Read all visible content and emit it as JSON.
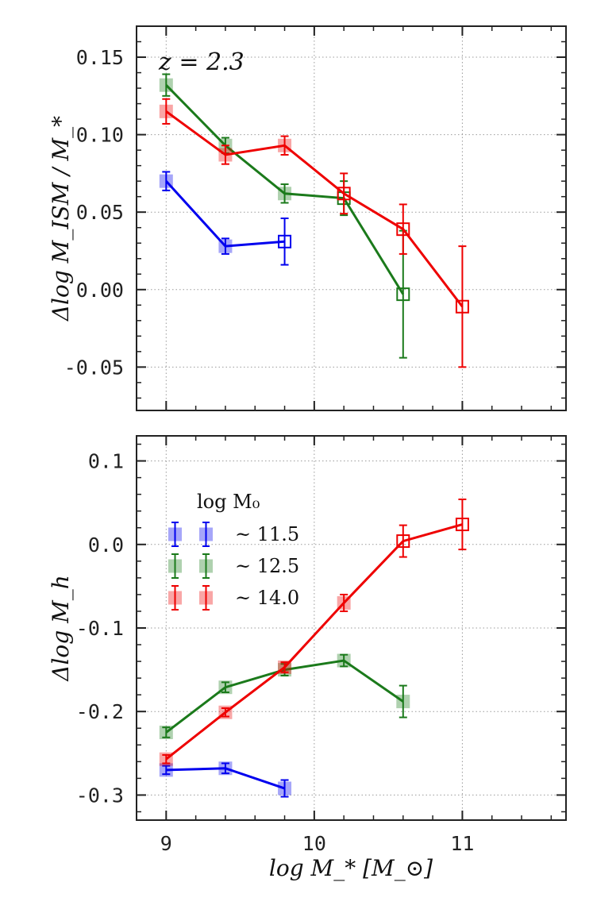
{
  "chart_data": [
    {
      "type": "line",
      "panel": "top",
      "title": "",
      "annotation": "z = 2.3",
      "xlabel": "",
      "ylabel": "Δlog M_ISM / M_*",
      "xlim": [
        8.8,
        11.7
      ],
      "ylim": [
        -0.078,
        0.17
      ],
      "xticks": [
        9,
        10,
        11
      ],
      "yticks": [
        0.15,
        0.1,
        0.05,
        0.0,
        -0.05
      ],
      "ytick_labels": [
        "0.15",
        "0.10",
        "0.05",
        "0.00",
        "-0.05"
      ],
      "grid": true,
      "series": [
        {
          "name": "~11.5",
          "color": "#0000ee",
          "x": [
            9.0,
            9.4,
            9.8
          ],
          "y": [
            0.07,
            0.028,
            0.031
          ],
          "err": [
            0.006,
            0.005,
            0.015
          ],
          "open": [
            false,
            false,
            true
          ]
        },
        {
          "name": "~12.5",
          "color": "#1b7a1b",
          "x": [
            9.0,
            9.4,
            9.8,
            10.2,
            10.6
          ],
          "y": [
            0.132,
            0.093,
            0.062,
            0.059,
            -0.003
          ],
          "err": [
            0.007,
            0.005,
            0.006,
            0.011,
            0.041
          ],
          "open": [
            false,
            false,
            false,
            true,
            true
          ]
        },
        {
          "name": "~14.0",
          "color": "#ee0000",
          "x": [
            9.0,
            9.4,
            9.8,
            10.2,
            10.6,
            11.0
          ],
          "y": [
            0.115,
            0.087,
            0.093,
            0.062,
            0.039,
            -0.011
          ],
          "err": [
            0.008,
            0.006,
            0.006,
            0.013,
            0.016,
            0.039
          ],
          "open": [
            false,
            false,
            false,
            true,
            true,
            true
          ]
        }
      ]
    },
    {
      "type": "line",
      "panel": "bottom",
      "title": "",
      "xlabel": "log M_* [M_⊙]",
      "ylabel": "Δlog M_h",
      "xlim": [
        8.8,
        11.7
      ],
      "ylim": [
        -0.33,
        0.13
      ],
      "xticks": [
        9,
        10,
        11
      ],
      "xtick_labels": [
        "9",
        "10",
        "11"
      ],
      "yticks": [
        0.1,
        0.0,
        -0.1,
        -0.2,
        -0.3
      ],
      "ytick_labels": [
        "0.1",
        "0.0",
        "-0.1",
        "-0.2",
        "-0.3"
      ],
      "grid": true,
      "legend": {
        "title": "log M₀",
        "placement": "upper-left",
        "entries": [
          "~ 11.5",
          "~ 12.5",
          "~ 14.0"
        ]
      },
      "series": [
        {
          "name": "~11.5",
          "color": "#0000ee",
          "x": [
            9.0,
            9.4,
            9.8
          ],
          "y": [
            -0.27,
            -0.268,
            -0.292
          ],
          "err": [
            0.005,
            0.006,
            0.01
          ],
          "open": [
            false,
            false,
            false
          ]
        },
        {
          "name": "~12.5",
          "color": "#1b7a1b",
          "x": [
            9.0,
            9.4,
            9.8,
            10.2,
            10.6
          ],
          "y": [
            -0.225,
            -0.171,
            -0.15,
            -0.139,
            -0.188
          ],
          "err": [
            0.006,
            0.006,
            0.007,
            0.007,
            0.019
          ],
          "open": [
            false,
            false,
            false,
            false,
            false
          ]
        },
        {
          "name": "~14.0",
          "color": "#ee0000",
          "x": [
            9.0,
            9.4,
            9.8,
            10.2,
            10.6,
            11.0
          ],
          "y": [
            -0.257,
            -0.201,
            -0.147,
            -0.07,
            0.004,
            0.024
          ],
          "err": [
            0.005,
            0.005,
            0.006,
            0.01,
            0.019,
            0.03
          ],
          "open": [
            false,
            false,
            false,
            false,
            true,
            true
          ]
        }
      ]
    }
  ]
}
